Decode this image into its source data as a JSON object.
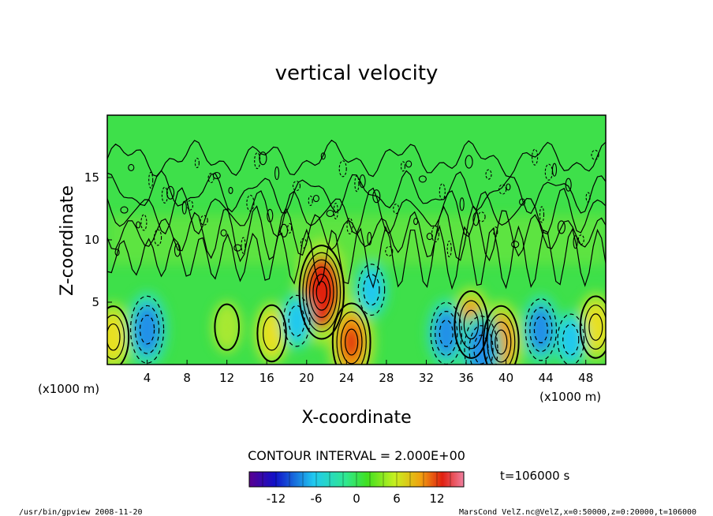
{
  "chart_data": {
    "type": "heatmap",
    "title": "vertical velocity",
    "xlabel": "X-coordinate",
    "ylabel": "Z-coordinate",
    "x_unit_left": "(x1000 m)",
    "x_unit_right": "(x1000 m)",
    "x_ticks": [
      "4",
      "8",
      "12",
      "16",
      "20",
      "24",
      "28",
      "32",
      "36",
      "40",
      "44",
      "48"
    ],
    "x_tick_values": [
      4,
      8,
      12,
      16,
      20,
      24,
      28,
      32,
      36,
      40,
      44,
      48
    ],
    "y_ticks": [
      "5",
      "10",
      "15"
    ],
    "y_tick_values": [
      5,
      10,
      15
    ],
    "xlim": [
      0,
      50
    ],
    "ylim": [
      0,
      20
    ],
    "contour_interval_label": "CONTOUR INTERVAL = 2.000E+00",
    "contour_interval": 2.0,
    "time_label": "t=106000 s",
    "colorbar": {
      "range": [
        -16,
        16
      ],
      "ticks": [
        "-12",
        "-6",
        "0",
        "6",
        "12"
      ],
      "tick_values": [
        -12,
        -6,
        0,
        6,
        12
      ]
    },
    "features": [
      {
        "x": 21.5,
        "z": 5.8,
        "value": 12,
        "kind": "updraft"
      },
      {
        "x": 24.5,
        "z": 1.8,
        "value": 9,
        "kind": "updraft"
      },
      {
        "x": 39.5,
        "z": 1.8,
        "value": 8,
        "kind": "updraft"
      },
      {
        "x": 36.5,
        "z": 3.2,
        "value": 7,
        "kind": "updraft"
      },
      {
        "x": 49.0,
        "z": 3.0,
        "value": 6,
        "kind": "updraft"
      },
      {
        "x": 0.6,
        "z": 2.2,
        "value": 6,
        "kind": "updraft"
      },
      {
        "x": 16.5,
        "z": 2.5,
        "value": 5,
        "kind": "updraft"
      },
      {
        "x": 12.0,
        "z": 3.0,
        "value": 3,
        "kind": "updraft"
      },
      {
        "x": 4.0,
        "z": 2.8,
        "value": -7,
        "kind": "downdraft"
      },
      {
        "x": 19.0,
        "z": 3.5,
        "value": -4,
        "kind": "downdraft"
      },
      {
        "x": 26.5,
        "z": 6.0,
        "value": -4,
        "kind": "downdraft"
      },
      {
        "x": 34.0,
        "z": 2.5,
        "value": -6,
        "kind": "downdraft"
      },
      {
        "x": 37.5,
        "z": 1.2,
        "value": -7,
        "kind": "downdraft"
      },
      {
        "x": 43.5,
        "z": 2.8,
        "value": -6,
        "kind": "downdraft"
      },
      {
        "x": 46.5,
        "z": 2.0,
        "value": -4,
        "kind": "downdraft"
      }
    ]
  },
  "footer": {
    "left": "/usr/bin/gpview   2008-11-20",
    "right": "MarsCond_VelZ.nc@VelZ,x=0:50000,z=0:20000,t=106000"
  }
}
